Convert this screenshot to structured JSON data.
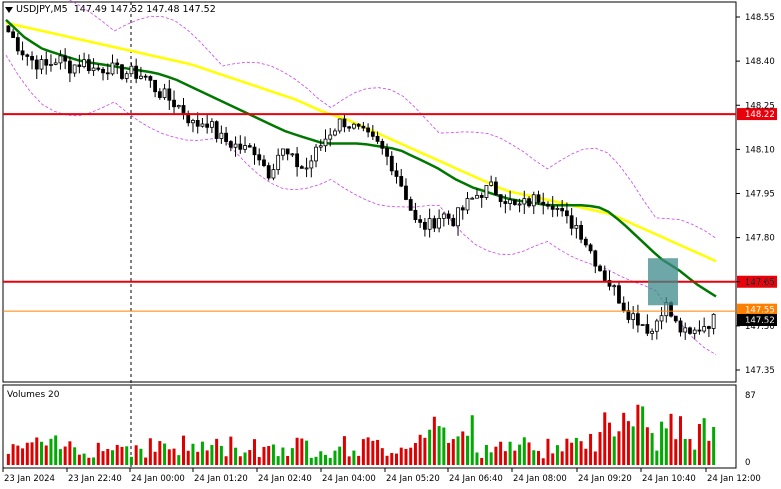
{
  "header": {
    "symbol": "USDJPY,M5",
    "ohlc": "147.49 147.52 147.48 147.52"
  },
  "volume_panel": {
    "title": "Volumes 20",
    "max_label": "87",
    "min_label": "0"
  },
  "price_axis": {
    "ticks": [
      "148.55",
      "148.40",
      "148.25",
      "148.10",
      "147.95",
      "147.80",
      "147.65",
      "147.50",
      "147.35"
    ]
  },
  "level_tags": {
    "upper": "148.22",
    "lower": "147.65",
    "orange": "147.55",
    "current": "147.52"
  },
  "time_axis": {
    "labels": [
      "23 Jan 2024",
      "23 Jan 22:40",
      "24 Jan 00:00",
      "24 Jan 01:20",
      "24 Jan 02:40",
      "24 Jan 04:00",
      "24 Jan 05:20",
      "24 Jan 06:40",
      "24 Jan 08:00",
      "24 Jan 09:20",
      "24 Jan 10:40",
      "24 Jan 12:00"
    ]
  },
  "colors": {
    "level_line": "#e8000b",
    "fast_ma": "#007700",
    "slow_ma": "#ffff00",
    "bollinger": "#cc44ee",
    "candles": "#000000",
    "volume_up": "#00aa00",
    "volume_down": "#dd0000",
    "signal_box": "#3d8a8a",
    "orange_line": "#ff8000"
  },
  "chart_data": {
    "type": "candlestick",
    "price_range": [
      147.3,
      148.6
    ],
    "grid": false,
    "horizontal_levels": [
      148.22,
      147.65
    ],
    "close_path": [
      148.5,
      148.44,
      148.4,
      148.38,
      148.41,
      148.38,
      148.4,
      148.37,
      148.38,
      148.36,
      148.36,
      148.35,
      148.3,
      148.27,
      148.24,
      148.18,
      148.2,
      148.14,
      148.12,
      148.1,
      148.1,
      148.02,
      148.1,
      148.06,
      148.03,
      148.1,
      148.16,
      148.2,
      148.17,
      148.14,
      148.11,
      148.05,
      147.96,
      147.84,
      147.84,
      147.88,
      147.86,
      147.91,
      147.95,
      147.97,
      147.94,
      147.9,
      147.92,
      147.94,
      147.92,
      147.86,
      147.84,
      147.76,
      147.68,
      147.62,
      147.55,
      147.52,
      147.48,
      147.58,
      147.5,
      147.46,
      147.5,
      147.52
    ],
    "fast_ma": [
      148.54,
      148.48,
      148.44,
      148.42,
      148.4,
      148.39,
      148.38,
      148.37,
      148.36,
      148.34,
      148.31,
      148.28,
      148.25,
      148.22,
      148.19,
      148.16,
      148.14,
      148.12,
      148.12,
      148.12,
      148.11,
      148.1,
      148.07,
      148.04,
      148.0,
      147.97,
      147.95,
      147.93,
      147.92,
      147.91,
      147.91,
      147.91,
      147.9,
      147.85,
      147.79,
      147.73,
      147.69,
      147.64,
      147.6
    ],
    "slow_ma": [
      148.53,
      148.51,
      148.49,
      148.47,
      148.45,
      148.43,
      148.41,
      148.39,
      148.36,
      148.33,
      148.3,
      148.27,
      148.23,
      148.2,
      148.16,
      148.12,
      148.08,
      148.04,
      148.0,
      147.96,
      147.94,
      147.92,
      147.9,
      147.88,
      147.84,
      147.8,
      147.76,
      147.72
    ],
    "volume_max": 87,
    "signal_box_price_range": [
      147.57,
      147.73
    ]
  }
}
